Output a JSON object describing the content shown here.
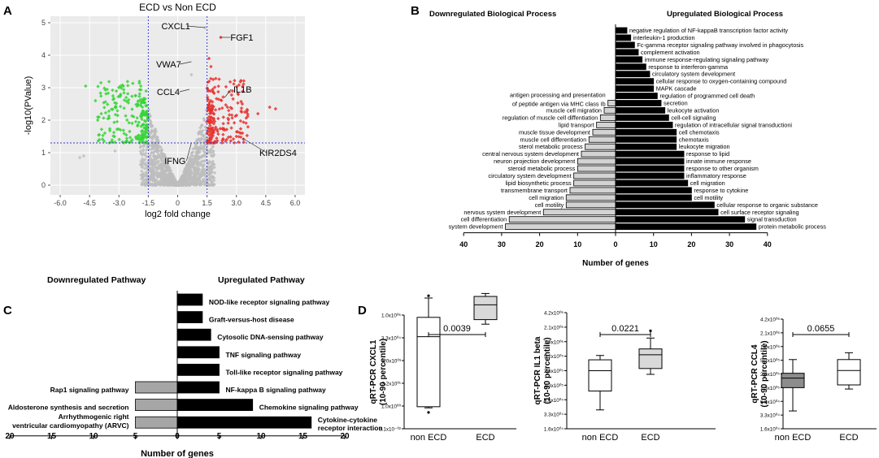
{
  "panels": {
    "a": "A",
    "b": "B",
    "c": "C",
    "d": "D"
  },
  "chart_data": [
    {
      "type": "scatter",
      "title": "ECD vs Non ECD",
      "xlabel": "log2 fold change",
      "ylabel": "-log10(PValue)",
      "xlim": [
        -6.5,
        6.5
      ],
      "ylim": [
        -0.3,
        5.2
      ],
      "x_ticks": [
        "-6.0",
        "-4.5",
        "-3.0",
        "-1.5",
        "0",
        "1.5",
        "3.0",
        "4.5",
        "6.0"
      ],
      "y_ticks": [
        "0",
        "1",
        "2",
        "3",
        "4",
        "5"
      ],
      "threshold_x": [
        -1.5,
        1.5
      ],
      "threshold_y": 1.3,
      "colors": {
        "up": "#e8302e",
        "down": "#34d534",
        "ns": "#bdbdbd",
        "threshold": "#3a3ad0"
      },
      "labels": [
        {
          "text": "CXCL1",
          "x": 1.4,
          "y": 4.85
        },
        {
          "text": "FGF1",
          "x": 2.2,
          "y": 4.55
        },
        {
          "text": "VWA7",
          "x": 0.7,
          "y": 3.8
        },
        {
          "text": "CCL4",
          "x": 0.6,
          "y": 2.95
        },
        {
          "text": "IL1B",
          "x": 2.4,
          "y": 2.7
        },
        {
          "text": "KIR2DS4",
          "x": 3.3,
          "y": 1.45
        },
        {
          "text": "IFNG",
          "x": 0.7,
          "y": 1.3
        }
      ]
    },
    {
      "type": "bar",
      "orientation": "horizontal",
      "title_left": "Downregulated Biological Process",
      "title_right": "Upregulated Biological Process",
      "xlabel": "Number of genes",
      "x_ticks": [
        "40",
        "30",
        "20",
        "10",
        "0",
        "10",
        "20",
        "30",
        "40"
      ],
      "up": [
        {
          "label": "negative regulation of NF-kappaB transcription factor activity",
          "value": 3
        },
        {
          "label": "interleukin-1 production",
          "value": 4
        },
        {
          "label": "Fc-gamma receptor signaling pathway involved in phagocytosis",
          "value": 5
        },
        {
          "label": "complement activation",
          "value": 6
        },
        {
          "label": "immune response-regulating signaling pathway",
          "value": 7
        },
        {
          "label": "response to interferon-gamma",
          "value": 8
        },
        {
          "label": "circulatory system development",
          "value": 9
        },
        {
          "label": "cellular response to oxygen-containing compound",
          "value": 10
        },
        {
          "label": "MAPK cascade",
          "value": 10
        },
        {
          "label": "regulation of programmed cell death",
          "value": 11
        },
        {
          "label": "secretion",
          "value": 12
        },
        {
          "label": "leukocyte activation",
          "value": 13
        },
        {
          "label": "cell-cell signaling",
          "value": 14
        },
        {
          "label": "regulation of intracellular signal transductioni",
          "value": 15
        },
        {
          "label": "cell chemotaxis",
          "value": 16
        },
        {
          "label": "chemotaxis",
          "value": 16
        },
        {
          "label": "leukocyte migration",
          "value": 16
        },
        {
          "label": "response to lipid",
          "value": 18
        },
        {
          "label": "innate immune response",
          "value": 18
        },
        {
          "label": "response to other organism",
          "value": 18
        },
        {
          "label": "inflammatory response",
          "value": 18
        },
        {
          "label": "cell migration",
          "value": 19
        },
        {
          "label": "response to cytokine",
          "value": 20
        },
        {
          "label": "cell motility",
          "value": 20
        },
        {
          "label": "cellular response to organic substance",
          "value": 26
        },
        {
          "label": "cell surface receptor signaling",
          "value": 27
        },
        {
          "label": "signal transduction",
          "value": 34
        },
        {
          "label": "protein metabolic process",
          "value": 37
        }
      ],
      "down": [
        {
          "label": "antigen processing and presentation",
          "label2": "of  peptide antigen via MHC class Ib",
          "value": 2
        },
        {
          "label": "muscle cell migration",
          "value": 3
        },
        {
          "label": "regulation of muscle cell diffentiation",
          "value": 4
        },
        {
          "label": "lipid transport",
          "value": 5
        },
        {
          "label": "muscle tissue development",
          "value": 6
        },
        {
          "label": "muscle cell differentiation",
          "value": 7
        },
        {
          "label": "sterol metabolic process",
          "value": 8
        },
        {
          "label": "central nervous system development",
          "value": 9
        },
        {
          "label": "neuron projection development",
          "value": 10
        },
        {
          "label": "steroid metabolic process",
          "value": 10
        },
        {
          "label": "circulatory system development",
          "value": 11
        },
        {
          "label": "lipid biosynthetic process",
          "value": 11
        },
        {
          "label": "transmembrane transport",
          "value": 12
        },
        {
          "label": "cell migration",
          "value": 13
        },
        {
          "label": "cell motility",
          "value": 13
        },
        {
          "label": "nervous system development",
          "value": 19
        },
        {
          "label": "cell differentiation",
          "value": 28
        },
        {
          "label": "system development",
          "value": 29
        }
      ]
    },
    {
      "type": "bar",
      "orientation": "horizontal",
      "title_left": "Downregulated Pathway",
      "title_right": "Upregulated Pathway",
      "xlabel": "Number of genes",
      "x_ticks": [
        "20",
        "15",
        "10",
        "5",
        "0",
        "5",
        "10",
        "15",
        "20"
      ],
      "up": [
        {
          "label": "NOD-like receptor signaling pathway",
          "value": 3
        },
        {
          "label": "Graft-versus-host disease",
          "value": 3
        },
        {
          "label": "Cytosolic DNA-sensing pathway",
          "value": 4
        },
        {
          "label": "TNF signaling pathway",
          "value": 5
        },
        {
          "label": "Toll-like receptor signaling pathway",
          "value": 5
        },
        {
          "label": "NF-kappa B signaling pathway",
          "value": 5
        },
        {
          "label": "Chemokine signaling pathway",
          "value": 9
        },
        {
          "label": "Cytokine-cytokine",
          "label2": "receptor interaction",
          "value": 16
        }
      ],
      "down": [
        {
          "label": "Rap1 signaling pathway",
          "value": 5
        },
        {
          "label": "Aldosterone synthesis and secretion",
          "value": 5
        },
        {
          "label": "Arrhythmogenic right",
          "label2": "ventricular cardiomyopathy (ARVC)",
          "value": 5
        }
      ]
    },
    {
      "type": "boxplot",
      "ylabel": "qRT-PCR CXCL1",
      "ylabel2": "(10-90 percentile)",
      "categories": [
        "non ECD",
        "ECD"
      ],
      "p_value": "0.0039",
      "y_ticks": [
        "1.0x10⁰⁶",
        "3.3x10⁰⁴",
        "1.0x10⁰³",
        "3.2x10⁰¹",
        "1.0x10⁰⁰",
        "3.1x10⁻⁰²"
      ],
      "boxes": [
        {
          "whisker_low": 0.92,
          "q1": 0.97,
          "median": 4.05,
          "q3": 4.9,
          "whisker_high": 5.75,
          "outliers": [
            0.72,
            5.85
          ],
          "fill": "#ffffff"
        },
        {
          "whisker_low": 4.6,
          "q1": 4.8,
          "median": 5.45,
          "q3": 5.82,
          "whisker_high": 5.95,
          "outliers": [],
          "fill": "#d9d9d9"
        }
      ]
    },
    {
      "type": "boxplot",
      "ylabel": "qRT-PCR IL1 beta",
      "ylabel2": "(10-90 percentile)",
      "categories": [
        "non ECD",
        "ECD"
      ],
      "p_value": "0.0221",
      "y_ticks": [
        "4.2x10⁰⁶",
        "2.1x10⁰⁶",
        "1.0x10⁰⁶",
        "5.2x10⁰⁵",
        "2.6x10⁰⁵",
        "1.3x10⁰⁵",
        "6.6x10⁰⁴",
        "3.3x10⁰⁴",
        "1.6x10⁰⁴"
      ],
      "boxes": [
        {
          "whisker_low": 1.3,
          "q1": 2.6,
          "median": 4.0,
          "q3": 4.75,
          "whisker_high": 5.05,
          "outliers": [],
          "fill": "#ffffff"
        },
        {
          "whisker_low": 3.75,
          "q1": 4.15,
          "median": 5.1,
          "q3": 5.5,
          "whisker_high": 6.25,
          "outliers": [
            6.75
          ],
          "fill": "#d9d9d9"
        }
      ]
    },
    {
      "type": "boxplot",
      "ylabel": "qRT-PCR CCL4",
      "ylabel2": "(10-90 percentile)",
      "categories": [
        "non ECD",
        "ECD"
      ],
      "p_value": "0.0655",
      "y_ticks": [
        "4.2x10⁰⁶",
        "2.1x10⁰⁶",
        "1.0x10⁰⁶",
        "5.2x10⁰⁵",
        "2.6x10⁰⁵",
        "1.3x10⁰⁵",
        "6.6x10⁰⁴",
        "3.3x10⁰⁴",
        "1.6x10⁰⁴"
      ],
      "boxes": [
        {
          "whisker_low": 1.3,
          "q1": 3.0,
          "median": 3.7,
          "q3": 4.05,
          "whisker_high": 5.05,
          "outliers": [],
          "fill": "#8c8c8c"
        },
        {
          "whisker_low": 2.9,
          "q1": 3.2,
          "median": 4.25,
          "q3": 5.05,
          "whisker_high": 5.55,
          "outliers": [],
          "fill": "#ffffff"
        }
      ]
    }
  ]
}
